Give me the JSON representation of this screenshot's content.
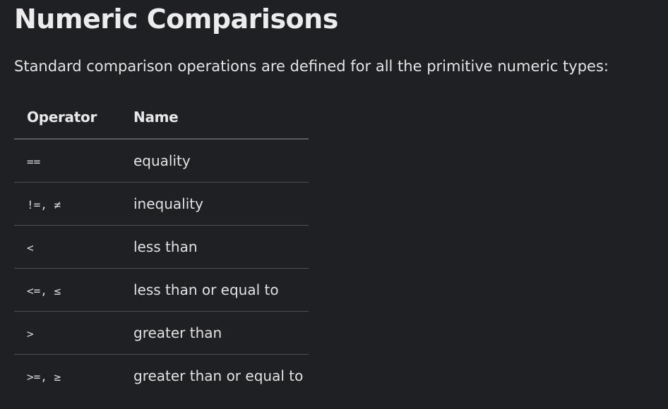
{
  "title": "Numeric Comparisons",
  "intro": "Standard comparison operations are defined for all the primitive numeric types:",
  "table": {
    "headers": {
      "operator": "Operator",
      "name": "Name"
    },
    "rows": [
      {
        "operator": "==",
        "name": "equality"
      },
      {
        "operator": "!=, ≠",
        "name": "inequality"
      },
      {
        "operator": "<",
        "name": "less than"
      },
      {
        "operator": "<=, ≤",
        "name": "less than or equal to"
      },
      {
        "operator": ">",
        "name": "greater than"
      },
      {
        "operator": ">=, ≥",
        "name": "greater than or equal to"
      }
    ]
  }
}
